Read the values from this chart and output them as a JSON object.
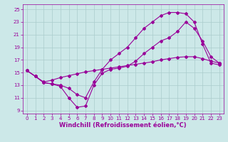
{
  "xlabel": "Windchill (Refroidissement éolien,°C)",
  "xlim": [
    -0.5,
    23.5
  ],
  "ylim": [
    8.5,
    25.8
  ],
  "yticks": [
    9,
    11,
    13,
    15,
    17,
    19,
    21,
    23,
    25
  ],
  "xticks": [
    0,
    1,
    2,
    3,
    4,
    5,
    6,
    7,
    8,
    9,
    10,
    11,
    12,
    13,
    14,
    15,
    16,
    17,
    18,
    19,
    20,
    21,
    22,
    23
  ],
  "bg_color": "#cce8e8",
  "grid_color": "#aacccc",
  "line_color": "#990099",
  "line1_x": [
    0,
    1,
    2,
    3,
    4,
    5,
    6,
    7,
    8,
    9,
    10,
    11,
    12,
    13,
    14,
    15,
    16,
    17,
    18,
    19,
    20,
    21,
    22,
    23
  ],
  "line1_y": [
    15.3,
    14.4,
    13.4,
    13.2,
    12.8,
    11.0,
    9.5,
    9.7,
    13.0,
    14.9,
    15.5,
    15.7,
    16.0,
    16.8,
    18.0,
    19.0,
    20.0,
    20.5,
    21.5,
    23.0,
    22.0,
    20.0,
    17.5,
    16.5
  ],
  "line2_x": [
    0,
    1,
    2,
    3,
    4,
    5,
    6,
    7,
    8,
    9,
    10,
    11,
    12,
    13,
    14,
    15,
    16,
    17,
    18,
    19,
    20,
    21,
    22,
    23
  ],
  "line2_y": [
    15.3,
    14.4,
    13.4,
    13.2,
    13.0,
    12.5,
    11.5,
    11.0,
    13.5,
    15.5,
    17.0,
    18.0,
    19.0,
    20.5,
    22.0,
    23.0,
    24.0,
    24.5,
    24.5,
    24.3,
    23.0,
    19.5,
    16.5,
    16.2
  ],
  "line3_x": [
    0,
    1,
    2,
    3,
    4,
    5,
    6,
    7,
    8,
    9,
    10,
    11,
    12,
    13,
    14,
    15,
    16,
    17,
    18,
    19,
    20,
    21,
    22,
    23
  ],
  "line3_y": [
    15.3,
    14.4,
    13.5,
    13.8,
    14.2,
    14.5,
    14.8,
    15.1,
    15.3,
    15.5,
    15.7,
    15.9,
    16.1,
    16.3,
    16.5,
    16.7,
    17.0,
    17.2,
    17.4,
    17.5,
    17.5,
    17.2,
    16.8,
    16.5
  ],
  "marker": "D",
  "markersize": 2.0,
  "linewidth": 0.8,
  "tick_fontsize": 5.0,
  "xlabel_fontsize": 6.0,
  "xlabel_fontweight": "bold"
}
